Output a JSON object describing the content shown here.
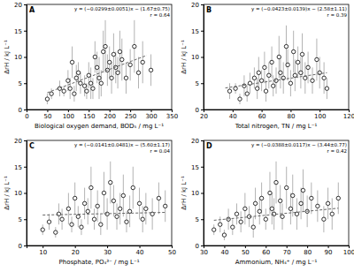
{
  "chart_data": [
    {
      "type": "scatter",
      "title": "A",
      "x_label": "Biological oxygen demand, BOD₅ / mg L⁻¹",
      "y_label": "ΔrH / kJ L⁻¹",
      "annotations": [
        "y = (−0.0299±0.0051)x − (1.67±0.75)",
        "r = 0.64"
      ],
      "xlim": [
        0,
        350
      ],
      "xticks": [
        0,
        50,
        100,
        150,
        200,
        250,
        300,
        350
      ],
      "ylim": [
        0,
        20
      ],
      "yticks": [
        0,
        5,
        10,
        15,
        20
      ],
      "series": [
        {
          "type": "scatter",
          "marker": "circle",
          "color": "#000000",
          "x": [
            50,
            60,
            80,
            90,
            100,
            105,
            110,
            115,
            120,
            125,
            130,
            140,
            145,
            150,
            155,
            160,
            165,
            170,
            175,
            180,
            185,
            190,
            195,
            200,
            205,
            210,
            215,
            220,
            225,
            230,
            240,
            250,
            260,
            270,
            280,
            300
          ],
          "values": [
            2,
            3,
            4,
            3.5,
            5.5,
            4,
            9,
            3,
            6,
            7,
            5,
            4.5,
            3.5,
            6.5,
            5,
            4,
            10,
            8,
            6,
            5,
            11,
            12,
            7.5,
            9,
            6,
            10.5,
            8,
            7,
            11,
            9.5,
            6,
            8.5,
            12,
            7,
            9,
            7.5
          ],
          "errors": [
            1,
            1,
            1.5,
            1,
            2,
            2,
            3,
            1.5,
            2.5,
            2,
            2,
            2,
            1.5,
            2.5,
            3,
            2,
            3,
            3,
            4,
            2.5,
            4,
            5,
            3,
            3,
            3,
            4,
            3,
            3,
            4,
            4,
            3,
            3,
            5,
            3,
            4,
            3
          ]
        },
        {
          "type": "line",
          "line_style": "dashed",
          "color": "#666666",
          "x": [
            50,
            290
          ],
          "values": [
            3.2,
            10.3
          ]
        }
      ]
    },
    {
      "type": "scatter",
      "title": "B",
      "x_label": "Total nitrogen, TN / mg L⁻¹",
      "y_label": "ΔrH / kJ L⁻¹",
      "annotations": [
        "y = (−0.0423±0.0139)x − (2.58±1.11)",
        "r = 0.39"
      ],
      "xlim": [
        20,
        120
      ],
      "xticks": [
        20,
        40,
        60,
        80,
        100,
        120
      ],
      "ylim": [
        0,
        20
      ],
      "yticks": [
        0,
        5,
        10,
        15,
        20
      ],
      "series": [
        {
          "type": "scatter",
          "marker": "circle",
          "color": "#000000",
          "x": [
            38,
            42,
            45,
            48,
            50,
            52,
            55,
            57,
            58,
            60,
            62,
            63,
            65,
            67,
            68,
            70,
            72,
            73,
            75,
            77,
            78,
            80,
            82,
            83,
            85,
            87,
            88,
            90,
            92,
            95,
            98,
            100,
            103,
            105
          ],
          "values": [
            3.5,
            4,
            2,
            4.5,
            3,
            5,
            6,
            4,
            7,
            5.5,
            8,
            3.5,
            6.5,
            9,
            4.5,
            5.5,
            10,
            7,
            6,
            12,
            8.5,
            5,
            11,
            6.5,
            9,
            7,
            10.5,
            6,
            8,
            5.5,
            9.5,
            7,
            6,
            4
          ],
          "errors": [
            1.5,
            1,
            1,
            2,
            1.5,
            2,
            2,
            2,
            3,
            2,
            3,
            2,
            2.5,
            3,
            2,
            2.5,
            4,
            3,
            3,
            4,
            3,
            2.5,
            4,
            3,
            3,
            3,
            4,
            3,
            3,
            2.5,
            4,
            3,
            3,
            2
          ]
        },
        {
          "type": "line",
          "line_style": "dashed",
          "color": "#666666",
          "x": [
            35,
            105
          ],
          "values": [
            4.1,
            7.0
          ]
        }
      ]
    },
    {
      "type": "scatter",
      "title": "C",
      "x_label": "Phosphate, PO₄³⁻ / mg L⁻¹",
      "y_label": "ΔrH / kJ L⁻¹",
      "annotations": [
        "y = (−0.0141±0.0481)x − (5.60±1.17)",
        "r = 0.04"
      ],
      "xlim": [
        5,
        50
      ],
      "xticks": [
        10,
        20,
        30,
        40,
        50
      ],
      "ylim": [
        0,
        20
      ],
      "yticks": [
        0,
        5,
        10,
        15,
        20
      ],
      "series": [
        {
          "type": "scatter",
          "marker": "circle",
          "color": "#000000",
          "x": [
            10,
            12,
            14,
            15,
            16,
            18,
            19,
            20,
            21,
            22,
            23,
            24,
            25,
            26,
            27,
            28,
            29,
            30,
            31,
            32,
            33,
            34,
            35,
            36,
            37,
            38,
            40,
            41,
            42,
            44,
            46,
            48
          ],
          "values": [
            3,
            4.5,
            2.5,
            6,
            5,
            7,
            4,
            9,
            5.5,
            3.5,
            8,
            6.5,
            11,
            5,
            7.5,
            4,
            10,
            6,
            12,
            8.5,
            5.5,
            7,
            9.5,
            4.5,
            6.5,
            11,
            8,
            5,
            7,
            6,
            9,
            7.5
          ],
          "errors": [
            1,
            1.5,
            1,
            2,
            2,
            3,
            1.5,
            3,
            2,
            1.5,
            3,
            2.5,
            4,
            2,
            3,
            2,
            4,
            3,
            4,
            3,
            2.5,
            3,
            4,
            2,
            3,
            4,
            3,
            2.5,
            3,
            3,
            3,
            3
          ]
        },
        {
          "type": "line",
          "line_style": "dashed",
          "color": "#666666",
          "x": [
            10,
            48
          ],
          "values": [
            5.8,
            6.3
          ]
        }
      ]
    },
    {
      "type": "scatter",
      "title": "D",
      "x_label": "Ammonium, NH₄⁺ / mg L⁻¹",
      "y_label": "ΔrH / kJ L⁻¹",
      "annotations": [
        "y = (−0.0388±0.0117)x − (3.44±0.77)",
        "r = 0.42"
      ],
      "xlim": [
        30,
        100
      ],
      "xticks": [
        30,
        40,
        50,
        60,
        70,
        80,
        90,
        100
      ],
      "ylim": [
        0,
        20
      ],
      "yticks": [
        0,
        5,
        10,
        15,
        20
      ],
      "series": [
        {
          "type": "scatter",
          "marker": "circle",
          "color": "#000000",
          "x": [
            35,
            38,
            40,
            42,
            44,
            46,
            48,
            50,
            52,
            54,
            55,
            57,
            58,
            60,
            62,
            63,
            64,
            65,
            67,
            68,
            70,
            72,
            73,
            75,
            77,
            78,
            80,
            82,
            85,
            88,
            90,
            92,
            95
          ],
          "values": [
            3,
            4,
            2,
            5,
            3.5,
            6,
            4.5,
            7,
            5.5,
            3.5,
            8,
            6.5,
            9,
            5,
            10,
            7,
            6,
            12,
            8.5,
            5.5,
            11,
            7,
            9.5,
            6,
            8,
            10.5,
            6.5,
            9,
            7.5,
            5,
            8,
            6,
            9
          ],
          "errors": [
            1,
            1.5,
            1,
            2,
            1.5,
            2,
            2,
            3,
            2,
            2,
            3,
            2.5,
            3,
            2,
            4,
            3,
            3,
            4,
            3,
            2.5,
            4,
            3,
            4,
            3,
            3,
            4,
            3,
            3,
            3,
            2.5,
            3,
            3,
            3
          ]
        },
        {
          "type": "line",
          "line_style": "dashed",
          "color": "#666666",
          "x": [
            35,
            95
          ],
          "values": [
            4.8,
            7.1
          ]
        }
      ]
    }
  ]
}
